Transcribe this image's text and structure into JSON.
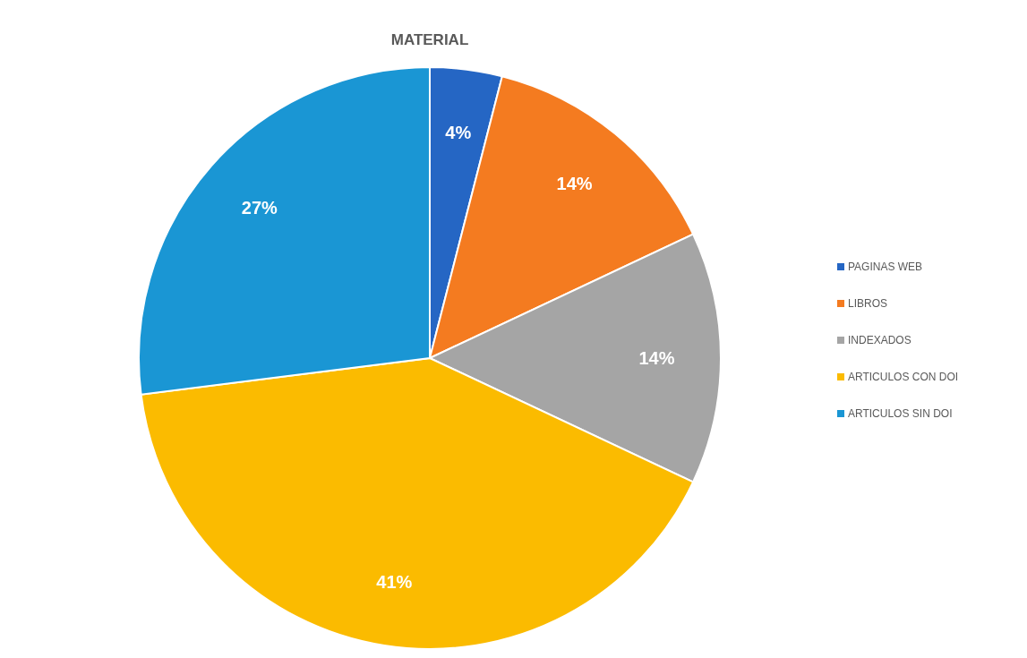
{
  "chart_data": {
    "type": "pie",
    "title": "MATERIAL",
    "categories": [
      "PAGINAS WEB",
      "LIBROS",
      "INDEXADOS",
      "ARTICULOS CON DOI",
      "ARTICULOS SIN DOI"
    ],
    "values": [
      4,
      14,
      14,
      41,
      27
    ],
    "colors": [
      "#2566c4",
      "#f47b20",
      "#a5a5a5",
      "#fbbb00",
      "#1a96d4"
    ],
    "value_labels": [
      "4%",
      "14%",
      "14%",
      "41%",
      "27%"
    ],
    "legend": "right"
  }
}
